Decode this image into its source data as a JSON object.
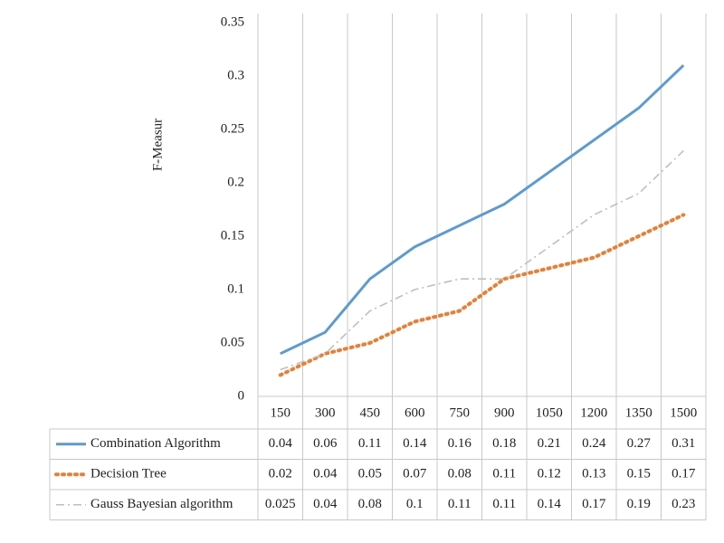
{
  "chart_data": {
    "type": "line",
    "y_label": "F-Measur",
    "categories": [
      "150",
      "300",
      "450",
      "600",
      "750",
      "900",
      "1050",
      "1200",
      "1350",
      "1500"
    ],
    "series": [
      {
        "name": "Combination Algorithm",
        "color": "#5b9bd5",
        "dash": "solid",
        "values": [
          0.04,
          0.06,
          0.11,
          0.14,
          0.16,
          0.18,
          0.21,
          0.24,
          0.27,
          0.31
        ]
      },
      {
        "name": "Decision Tree",
        "color": "#ed7d31",
        "dash": "dot",
        "values": [
          0.02,
          0.04,
          0.05,
          0.07,
          0.08,
          0.11,
          0.12,
          0.13,
          0.15,
          0.17
        ]
      },
      {
        "name": "Gauss Bayesian algorithm",
        "color": "#bfbfbf",
        "dash": "dashdot",
        "values": [
          0.025,
          0.04,
          0.08,
          0.1,
          0.11,
          0.11,
          0.14,
          0.17,
          0.19,
          0.23
        ]
      }
    ],
    "ylim": [
      0,
      0.35
    ],
    "yticks": [
      0,
      0.05,
      0.1,
      0.15,
      0.2,
      0.25,
      0.3,
      0.35
    ],
    "data_table": true
  }
}
